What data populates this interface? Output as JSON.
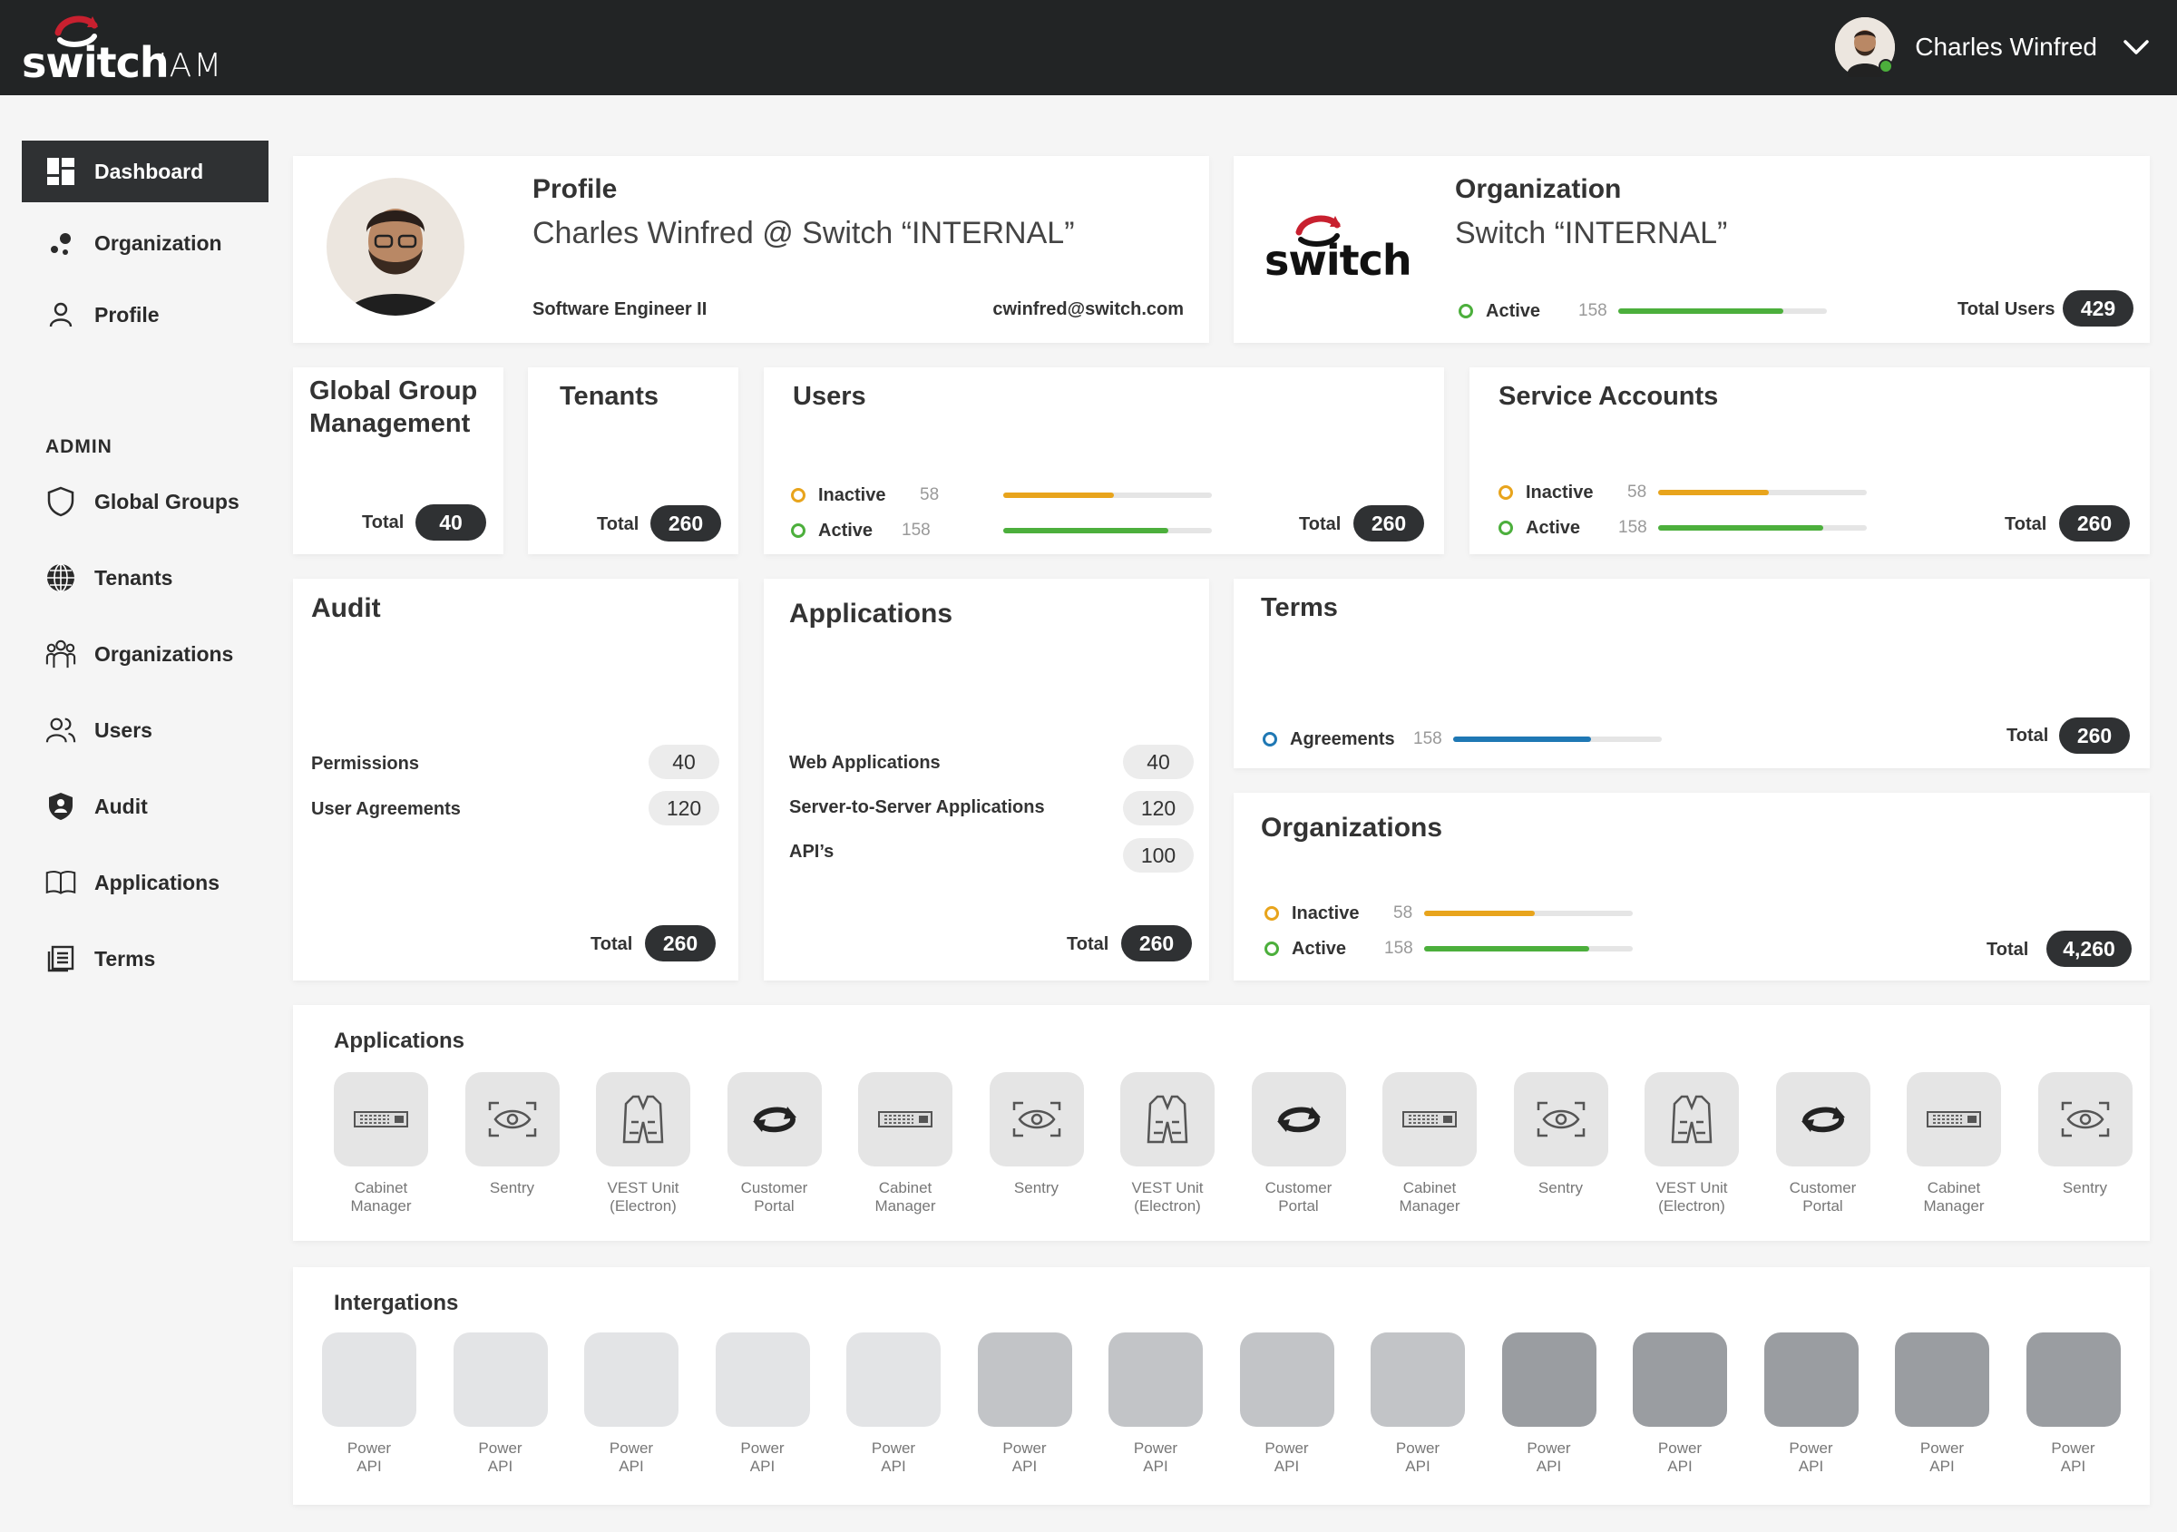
{
  "header": {
    "logo_word": "switch",
    "logo_suffix": "IAM",
    "user_name": "Charles Winfred"
  },
  "sidebar": {
    "items": [
      {
        "label": "Dashboard",
        "icon": "dashboard-icon"
      },
      {
        "label": "Organization",
        "icon": "organization-icon"
      },
      {
        "label": "Profile",
        "icon": "profile-icon"
      }
    ],
    "admin_label": "ADMIN",
    "admin_items": [
      {
        "label": "Global Groups",
        "icon": "shield-icon"
      },
      {
        "label": "Tenants",
        "icon": "globe-icon"
      },
      {
        "label": "Organizations",
        "icon": "people-group-icon"
      },
      {
        "label": "Users",
        "icon": "users-icon"
      },
      {
        "label": "Audit",
        "icon": "shield-half-icon"
      },
      {
        "label": "Applications",
        "icon": "book-icon"
      },
      {
        "label": "Terms",
        "icon": "document-icon"
      }
    ]
  },
  "profile": {
    "title": "Profile",
    "name": "Charles Winfred @ Switch “INTERNAL”",
    "role": "Software Engineer II",
    "email": "cwinfred@switch.com"
  },
  "organization": {
    "title": "Organization",
    "logo_word": "switch",
    "name": "Switch “INTERNAL”",
    "active_label": "Active",
    "active_count": "158",
    "active_fraction": 0.79,
    "total_label": "Total Users",
    "total": "429"
  },
  "global_groups": {
    "title_line1": "Global Group",
    "title_line2": "Management",
    "total_label": "Total",
    "total": "40"
  },
  "tenants": {
    "title": "Tenants",
    "total_label": "Total",
    "total": "260"
  },
  "users": {
    "title": "Users",
    "inactive_label": "Inactive",
    "inactive_count": "58",
    "inactive_fraction": 0.53,
    "active_label": "Active",
    "active_count": "158",
    "active_fraction": 0.79,
    "total_label": "Total",
    "total": "260"
  },
  "service_accounts": {
    "title": "Service Accounts",
    "inactive_label": "Inactive",
    "inactive_count": "58",
    "inactive_fraction": 0.53,
    "active_label": "Active",
    "active_count": "158",
    "active_fraction": 0.79,
    "total_label": "Total",
    "total": "260"
  },
  "audit": {
    "title": "Audit",
    "rows": [
      {
        "label": "Permissions",
        "value": "40"
      },
      {
        "label": "User Agreements",
        "value": "120"
      }
    ],
    "total_label": "Total",
    "total": "260"
  },
  "applications_card": {
    "title": "Applications",
    "rows": [
      {
        "label": "Web Applications",
        "value": "40"
      },
      {
        "label": "Server-to-Server Applications",
        "value": "120"
      },
      {
        "label": "API’s",
        "value": "100"
      }
    ],
    "total_label": "Total",
    "total": "260"
  },
  "terms": {
    "title": "Terms",
    "agreements_label": "Agreements",
    "agreements_count": "158",
    "agreements_fraction": 0.66,
    "total_label": "Total",
    "total": "260"
  },
  "organizations_card": {
    "title": "Organizations",
    "inactive_label": "Inactive",
    "inactive_count": "58",
    "inactive_fraction": 0.53,
    "active_label": "Active",
    "active_count": "158",
    "active_fraction": 0.79,
    "total_label": "Total",
    "total": "4,260"
  },
  "applications_strip": {
    "title": "Applications",
    "apps": [
      {
        "line1": "Cabinet",
        "line2": "Manager",
        "icon": "server-rack-icon"
      },
      {
        "line1": "Sentry",
        "line2": "",
        "icon": "eye-scan-icon"
      },
      {
        "line1": "VEST Unit",
        "line2": "(Electron)",
        "icon": "vest-icon"
      },
      {
        "line1": "Customer",
        "line2": "Portal",
        "icon": "sync-arrows-icon"
      },
      {
        "line1": "Cabinet",
        "line2": "Manager",
        "icon": "server-rack-icon"
      },
      {
        "line1": "Sentry",
        "line2": "",
        "icon": "eye-scan-icon"
      },
      {
        "line1": "VEST Unit",
        "line2": "(Electron)",
        "icon": "vest-icon"
      },
      {
        "line1": "Customer",
        "line2": "Portal",
        "icon": "sync-arrows-icon"
      },
      {
        "line1": "Cabinet",
        "line2": "Manager",
        "icon": "server-rack-icon"
      },
      {
        "line1": "Sentry",
        "line2": "",
        "icon": "eye-scan-icon"
      },
      {
        "line1": "VEST Unit",
        "line2": "(Electron)",
        "icon": "vest-icon"
      },
      {
        "line1": "Customer",
        "line2": "Portal",
        "icon": "sync-arrows-icon"
      },
      {
        "line1": "Cabinet",
        "line2": "Manager",
        "icon": "server-rack-icon"
      },
      {
        "line1": "Sentry",
        "line2": "",
        "icon": "eye-scan-icon"
      }
    ]
  },
  "integrations_strip": {
    "title": "Intergations",
    "items": [
      {
        "line1": "Power",
        "line2": "API",
        "shade": "#e3e4e6"
      },
      {
        "line1": "Power",
        "line2": "API",
        "shade": "#e3e4e6"
      },
      {
        "line1": "Power",
        "line2": "API",
        "shade": "#e3e4e6"
      },
      {
        "line1": "Power",
        "line2": "API",
        "shade": "#e3e4e6"
      },
      {
        "line1": "Power",
        "line2": "API",
        "shade": "#e3e4e6"
      },
      {
        "line1": "Power",
        "line2": "API",
        "shade": "#c2c4c7"
      },
      {
        "line1": "Power",
        "line2": "API",
        "shade": "#c2c4c7"
      },
      {
        "line1": "Power",
        "line2": "API",
        "shade": "#c2c4c7"
      },
      {
        "line1": "Power",
        "line2": "API",
        "shade": "#c2c4c7"
      },
      {
        "line1": "Power",
        "line2": "API",
        "shade": "#9a9da1"
      },
      {
        "line1": "Power",
        "line2": "API",
        "shade": "#9a9da1"
      },
      {
        "line1": "Power",
        "line2": "API",
        "shade": "#9a9da1"
      },
      {
        "line1": "Power",
        "line2": "API",
        "shade": "#9a9da1"
      },
      {
        "line1": "Power",
        "line2": "API",
        "shade": "#9a9da1"
      }
    ]
  },
  "colors": {
    "accent_dark": "#2f3133",
    "inactive": "#e8a41c",
    "active": "#4caf3c",
    "agreements": "#1f78b4",
    "brand_red": "#c8202f"
  }
}
